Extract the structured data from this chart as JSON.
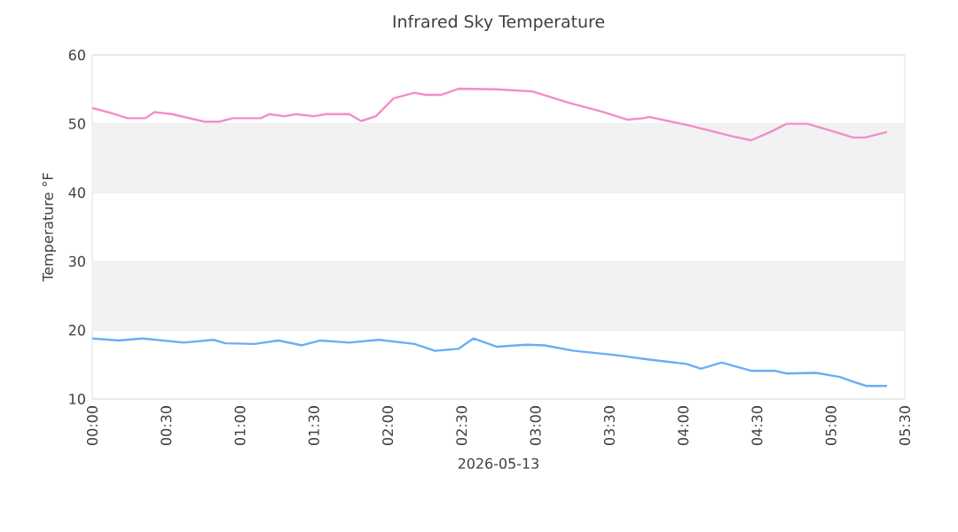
{
  "chart_data": {
    "type": "line",
    "title": "Infrared Sky Temperature",
    "xlabel": "2026-05-13",
    "ylabel": "Temperature °F",
    "xlim": [
      0,
      5.5
    ],
    "ylim": [
      10,
      60
    ],
    "xticks": [
      {
        "value": 0,
        "label": "00:00"
      },
      {
        "value": 0.5,
        "label": "00:30"
      },
      {
        "value": 1,
        "label": "01:00"
      },
      {
        "value": 1.5,
        "label": "01:30"
      },
      {
        "value": 2,
        "label": "02:00"
      },
      {
        "value": 2.5,
        "label": "02:30"
      },
      {
        "value": 3,
        "label": "03:00"
      },
      {
        "value": 3.5,
        "label": "03:30"
      },
      {
        "value": 4,
        "label": "04:00"
      },
      {
        "value": 4.5,
        "label": "04:30"
      },
      {
        "value": 5,
        "label": "05:00"
      },
      {
        "value": 5.5,
        "label": "05:30"
      }
    ],
    "yticks": [
      10,
      20,
      30,
      40,
      50,
      60
    ],
    "grid": "y",
    "marker": "none",
    "line_style": "solid",
    "bands": [
      {
        "axis": "y",
        "from": 20,
        "to": 30,
        "color": "#f2f2f2"
      },
      {
        "axis": "y",
        "from": 40,
        "to": 50,
        "color": "#f2f2f2"
      }
    ],
    "series": [
      {
        "color": "#f28ec8",
        "x": [
          0,
          0.12,
          0.24,
          0.36,
          0.42,
          0.54,
          0.76,
          0.86,
          0.95,
          1.14,
          1.2,
          1.3,
          1.38,
          1.5,
          1.58,
          1.74,
          1.82,
          1.92,
          2.04,
          2.18,
          2.26,
          2.36,
          2.48,
          2.74,
          2.98,
          3.22,
          3.46,
          3.62,
          3.73,
          3.77,
          3.9,
          4.05,
          4.33,
          4.46,
          4.6,
          4.7,
          4.84,
          5.0,
          5.15,
          5.23,
          5.38
        ],
        "values": [
          52.3,
          51.6,
          50.8,
          50.8,
          51.7,
          51.4,
          50.3,
          50.3,
          50.8,
          50.8,
          51.4,
          51.1,
          51.4,
          51.1,
          51.4,
          51.4,
          50.4,
          51.1,
          53.7,
          54.5,
          54.2,
          54.2,
          55.1,
          55.0,
          54.7,
          53.1,
          51.7,
          50.6,
          50.8,
          51.0,
          50.4,
          49.7,
          48.2,
          47.6,
          48.9,
          50.0,
          50.0,
          49.0,
          48.0,
          48.0,
          48.8
        ]
      },
      {
        "color": "#6aaef5",
        "x": [
          0,
          0.18,
          0.34,
          0.62,
          0.82,
          0.9,
          1.1,
          1.26,
          1.42,
          1.54,
          1.74,
          1.94,
          2.18,
          2.32,
          2.48,
          2.58,
          2.74,
          2.94,
          3.06,
          3.26,
          3.54,
          3.78,
          4.02,
          4.12,
          4.26,
          4.46,
          4.62,
          4.7,
          4.9,
          5.06,
          5.14,
          5.24,
          5.38
        ],
        "values": [
          18.8,
          18.5,
          18.8,
          18.2,
          18.6,
          18.1,
          18.0,
          18.5,
          17.8,
          18.5,
          18.2,
          18.6,
          18.0,
          17.0,
          17.3,
          18.8,
          17.6,
          17.9,
          17.8,
          17.0,
          16.4,
          15.7,
          15.1,
          14.4,
          15.3,
          14.1,
          14.1,
          13.7,
          13.8,
          13.2,
          12.6,
          11.9,
          11.9
        ]
      }
    ]
  }
}
